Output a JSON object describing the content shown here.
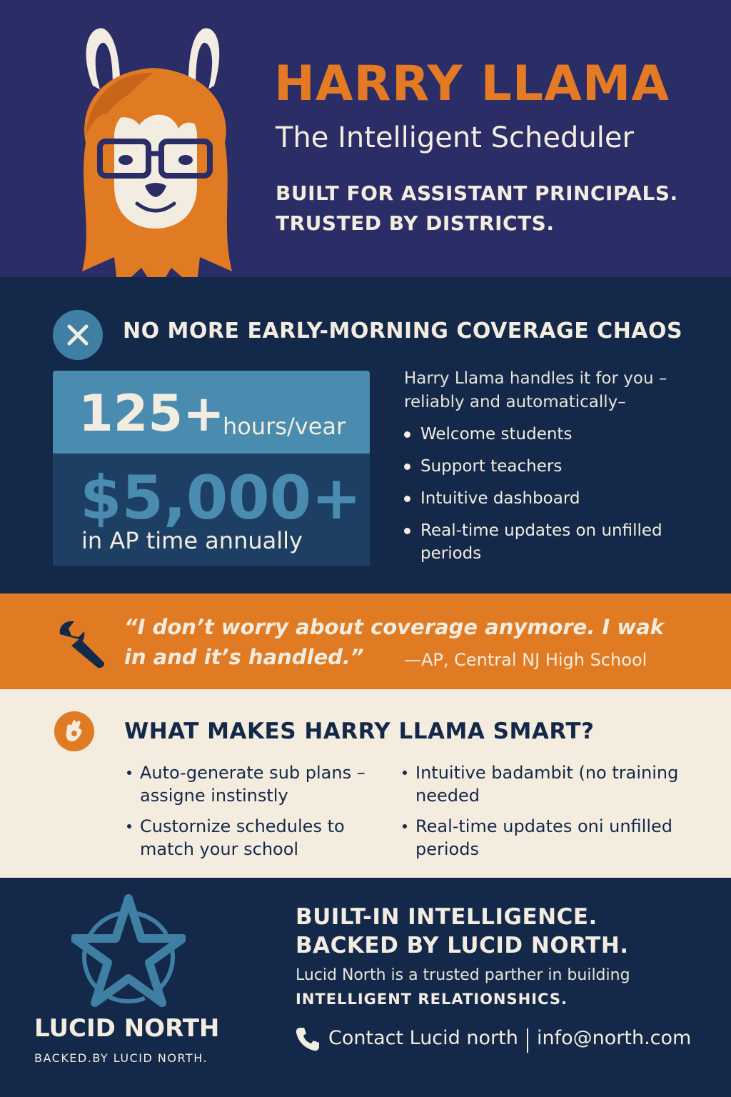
{
  "header": {
    "title": "HARRY LLAMA",
    "subtitle": "The Intelligent Scheduler",
    "tagline_line1": "BUILT FOR ASSISTANT PRINCIPALS.",
    "tagline_line2": "TRUSTED BY DISTRICTS."
  },
  "coverage": {
    "heading": "NO MORE EARLY-MORNING COVERAGE CHAOS",
    "hours_value": "125+",
    "hours_unit": "hours/vear",
    "money_value": "$5,000+",
    "money_label": "in AP time annually",
    "intro": "Harry Llama handles it for you – reliably and automatically–",
    "bullets": [
      "Welcome students",
      "Support teachers",
      "Intuitive dashboard",
      "Real-time updates on unfilled periods"
    ]
  },
  "testimonial": {
    "quote": "“I don’t worry about coverage anymore. I wak in and it’s handled.”",
    "attribution": "—AP, Central NJ High School"
  },
  "smart": {
    "heading": "WHAT MAKES HARRY LLAMA SMART?",
    "left": [
      "Auto-generate sub plans – assigne instinstly",
      "Custornize schedules to match your school"
    ],
    "right": [
      "Intuitive badambit (no training needed",
      "Real-time updates oni unfilled periods"
    ]
  },
  "footer": {
    "brand": "LUCID NORTH",
    "brand_sub": "BACKED.BY LUCID NORTH.",
    "heading_line1": "BUILT-IN INTELLIGENCE.",
    "heading_line2": "BACKED BY LUCID NORTH.",
    "text": "Lucid North is a trusted parther in building",
    "strong": "INTELLIGENT RELATIONSHICS.",
    "contact": "Contact Lucid north",
    "email": "info@north.com"
  },
  "icons": {
    "llama": "llama-mascot-icon",
    "close": "x-circle-icon",
    "wrench": "wrench-icon",
    "smart": "hand-badge-icon",
    "star": "star-logo-icon",
    "phone": "phone-icon"
  },
  "colors": {
    "navy_purple": "#2b2d66",
    "dark_navy": "#14294a",
    "orange": "#e07b24",
    "steel_blue": "#4a8bb0",
    "cream": "#f4ecde"
  }
}
